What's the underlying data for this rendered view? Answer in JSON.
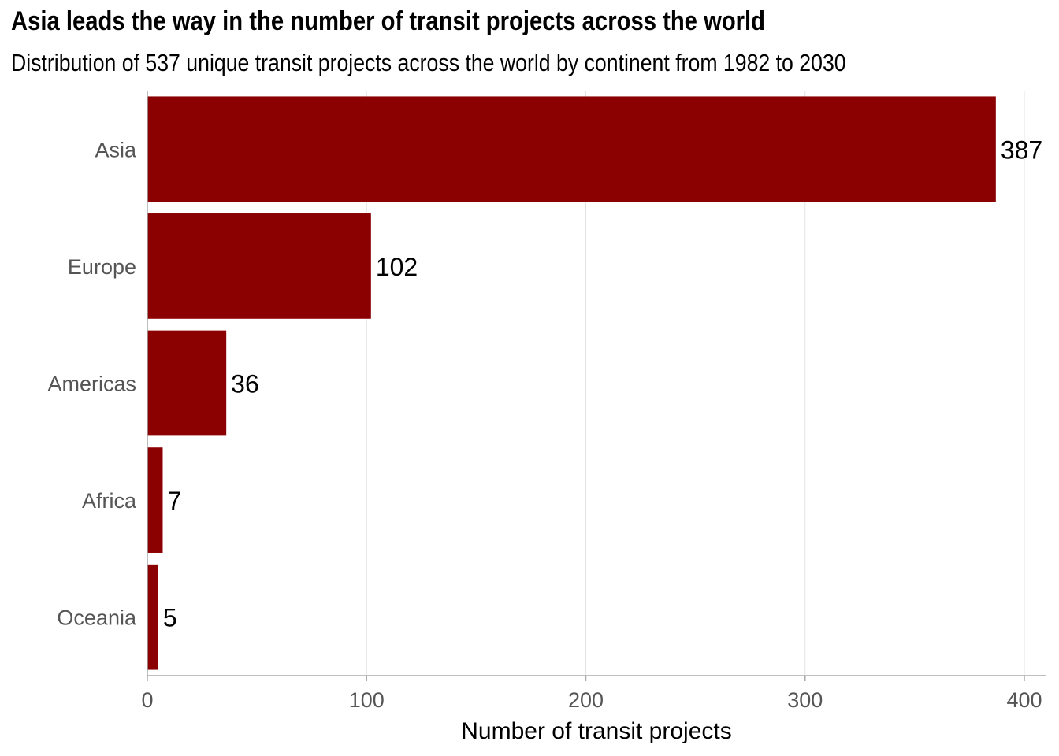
{
  "chart_data": {
    "type": "bar",
    "orientation": "horizontal",
    "title": "Asia leads the way in the number of transit projects across the world",
    "subtitle": "Distribution of 537 unique transit projects across the world by continent from 1982 to 2030",
    "categories": [
      "Asia",
      "Europe",
      "Americas",
      "Africa",
      "Oceania"
    ],
    "values": [
      387,
      102,
      36,
      7,
      5
    ],
    "xlabel": "Number of transit projects",
    "ylabel": "",
    "xlim": [
      0,
      410
    ],
    "xticks": [
      0,
      100,
      200,
      300,
      400
    ],
    "grid": true,
    "bar_color": "#8b0000"
  }
}
